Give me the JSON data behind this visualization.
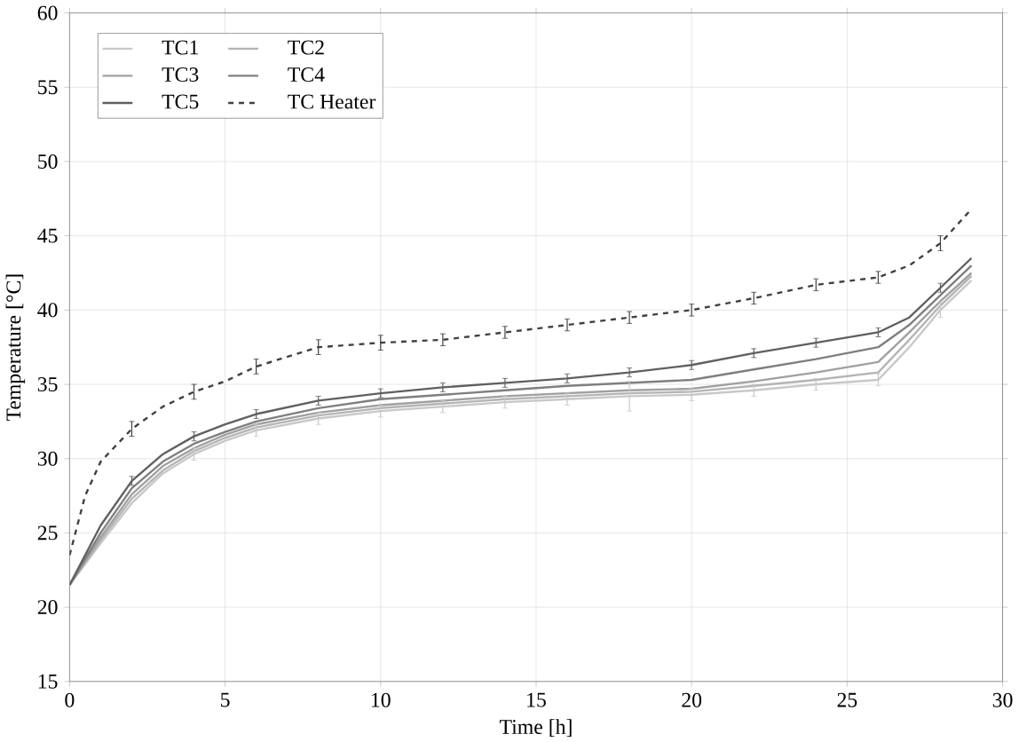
{
  "chart_data": {
    "type": "line",
    "xlabel": "Time [h]",
    "ylabel": "Temperature [°C]",
    "x": [
      0,
      1,
      2,
      3,
      4,
      5,
      6,
      8,
      10,
      12,
      14,
      16,
      18,
      20,
      22,
      24,
      26,
      27,
      28,
      29
    ],
    "series": [
      {
        "name": "TC1",
        "color": "#c8c8c8",
        "values": [
          21.5,
          24.3,
          27,
          29,
          30.3,
          31.2,
          31.9,
          32.7,
          33.2,
          33.5,
          33.8,
          34,
          34.2,
          34.3,
          34.6,
          35,
          35.3,
          37.5,
          40,
          42
        ],
        "errors": [
          null,
          null,
          null,
          null,
          0.4,
          null,
          0.4,
          0.4,
          0.4,
          0.4,
          0.4,
          0.4,
          1,
          0.4,
          0.4,
          0.4,
          0.4,
          null,
          0.5,
          null
        ]
      },
      {
        "name": "TC2",
        "color": "#b4b4b4",
        "values": [
          21.5,
          24.5,
          27.3,
          29.2,
          30.5,
          31.4,
          32.1,
          32.9,
          33.4,
          33.7,
          34,
          34.2,
          34.4,
          34.5,
          34.9,
          35.3,
          35.8,
          38,
          40.3,
          42.3
        ]
      },
      {
        "name": "TC3",
        "color": "#a0a0a0",
        "values": [
          21.5,
          24.7,
          27.6,
          29.5,
          30.7,
          31.6,
          32.3,
          33.1,
          33.6,
          33.9,
          34.2,
          34.4,
          34.6,
          34.7,
          35.2,
          35.8,
          36.5,
          38.5,
          40.6,
          42.5
        ]
      },
      {
        "name": "TC4",
        "color": "#7f7f7f",
        "values": [
          21.5,
          25,
          28,
          29.8,
          31,
          31.8,
          32.5,
          33.4,
          34,
          34.3,
          34.6,
          34.9,
          35.1,
          35.3,
          36,
          36.7,
          37.5,
          39,
          41,
          43
        ]
      },
      {
        "name": "TC5",
        "color": "#606060",
        "values": [
          21.5,
          25.5,
          28.5,
          30.3,
          31.5,
          32.3,
          33,
          33.9,
          34.4,
          34.8,
          35.1,
          35.4,
          35.8,
          36.3,
          37.1,
          37.8,
          38.5,
          39.5,
          41.5,
          43.5
        ],
        "errors": [
          null,
          null,
          0.3,
          null,
          0.3,
          null,
          0.3,
          0.3,
          0.3,
          0.3,
          0.3,
          0.3,
          0.3,
          0.3,
          0.3,
          0.3,
          0.3,
          null,
          0.3,
          null
        ]
      },
      {
        "name": "TC Heater",
        "color": "#404040",
        "line_style": "dashed",
        "x": [
          0,
          0.5,
          1,
          2,
          3,
          4,
          5,
          6,
          8,
          10,
          12,
          14,
          16,
          18,
          20,
          22,
          24,
          26,
          27,
          28,
          29
        ],
        "values": [
          23.5,
          27.5,
          29.8,
          32,
          33.5,
          34.5,
          35.2,
          36.2,
          37.5,
          37.8,
          38,
          38.5,
          39,
          39.5,
          40,
          40.8,
          41.7,
          42.2,
          43,
          44.5,
          46.8
        ],
        "errors": [
          null,
          null,
          null,
          0.5,
          null,
          0.5,
          null,
          0.5,
          0.5,
          0.5,
          0.4,
          0.4,
          0.4,
          0.4,
          0.4,
          0.4,
          0.4,
          0.4,
          null,
          0.5,
          null
        ]
      }
    ],
    "xlim": [
      0,
      30
    ],
    "ylim": [
      15,
      60
    ],
    "xticks": [
      0,
      5,
      10,
      15,
      20,
      25,
      30
    ],
    "yticks": [
      15,
      20,
      25,
      30,
      35,
      40,
      45,
      50,
      55,
      60
    ],
    "grid": true,
    "legend": "top left",
    "marker": "none"
  }
}
